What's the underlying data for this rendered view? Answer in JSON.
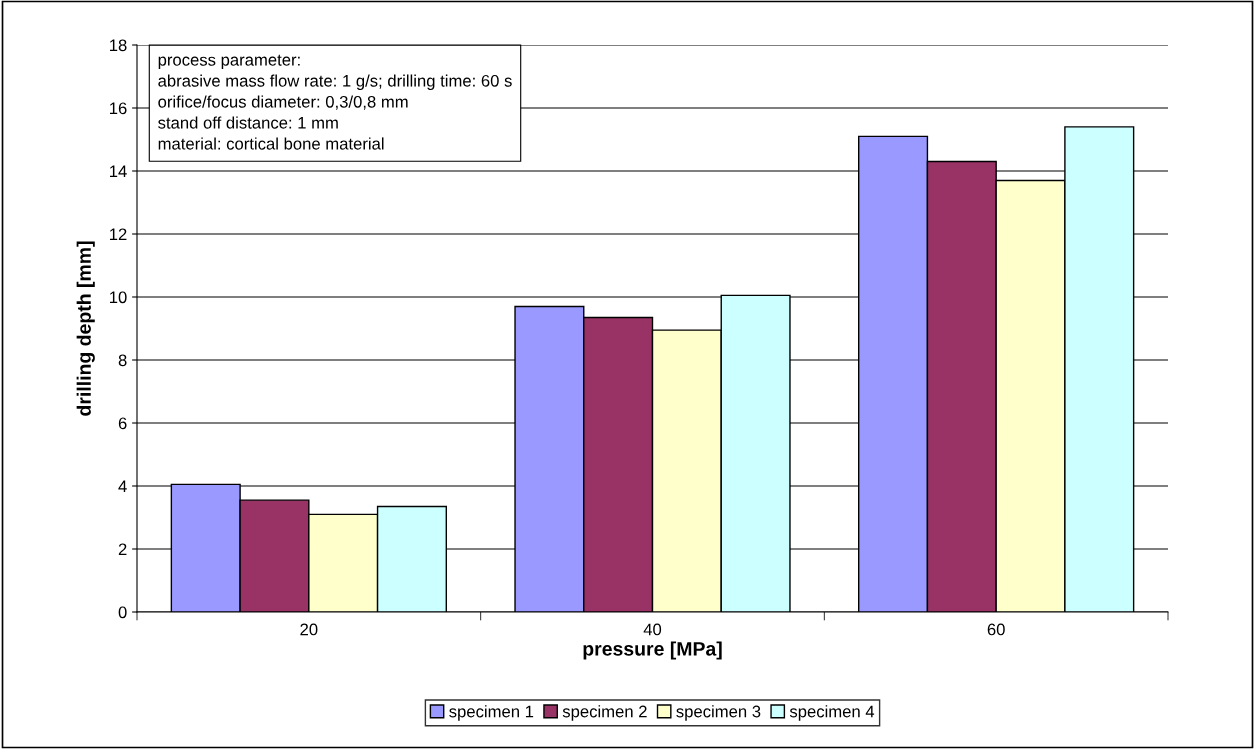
{
  "chart_data": {
    "type": "bar",
    "xlabel": "pressure [MPa]",
    "ylabel": "drilling depth [mm]",
    "categories": [
      "20",
      "40",
      "60"
    ],
    "series": [
      {
        "name": "specimen 1",
        "color": "#9999ff",
        "values": [
          4.05,
          9.7,
          15.1
        ]
      },
      {
        "name": "specimen 2",
        "color": "#993366",
        "values": [
          3.55,
          9.35,
          14.3
        ]
      },
      {
        "name": "specimen 3",
        "color": "#ffffcc",
        "values": [
          3.1,
          8.95,
          13.7
        ]
      },
      {
        "name": "specimen 4",
        "color": "#ccffff",
        "values": [
          3.35,
          10.05,
          15.4
        ]
      }
    ],
    "ylim": [
      0,
      18
    ],
    "yticks": [
      0,
      2,
      4,
      6,
      8,
      10,
      12,
      14,
      16,
      18
    ],
    "grid": "y",
    "legend": "bottom",
    "annotations": [
      "process parameter:",
      "abrasive mass flow rate: 1 g/s; drilling time: 60 s",
      "orifice/focus diameter: 0,3/0,8 mm",
      "stand off distance: 1 mm",
      "material: cortical bone material"
    ]
  }
}
